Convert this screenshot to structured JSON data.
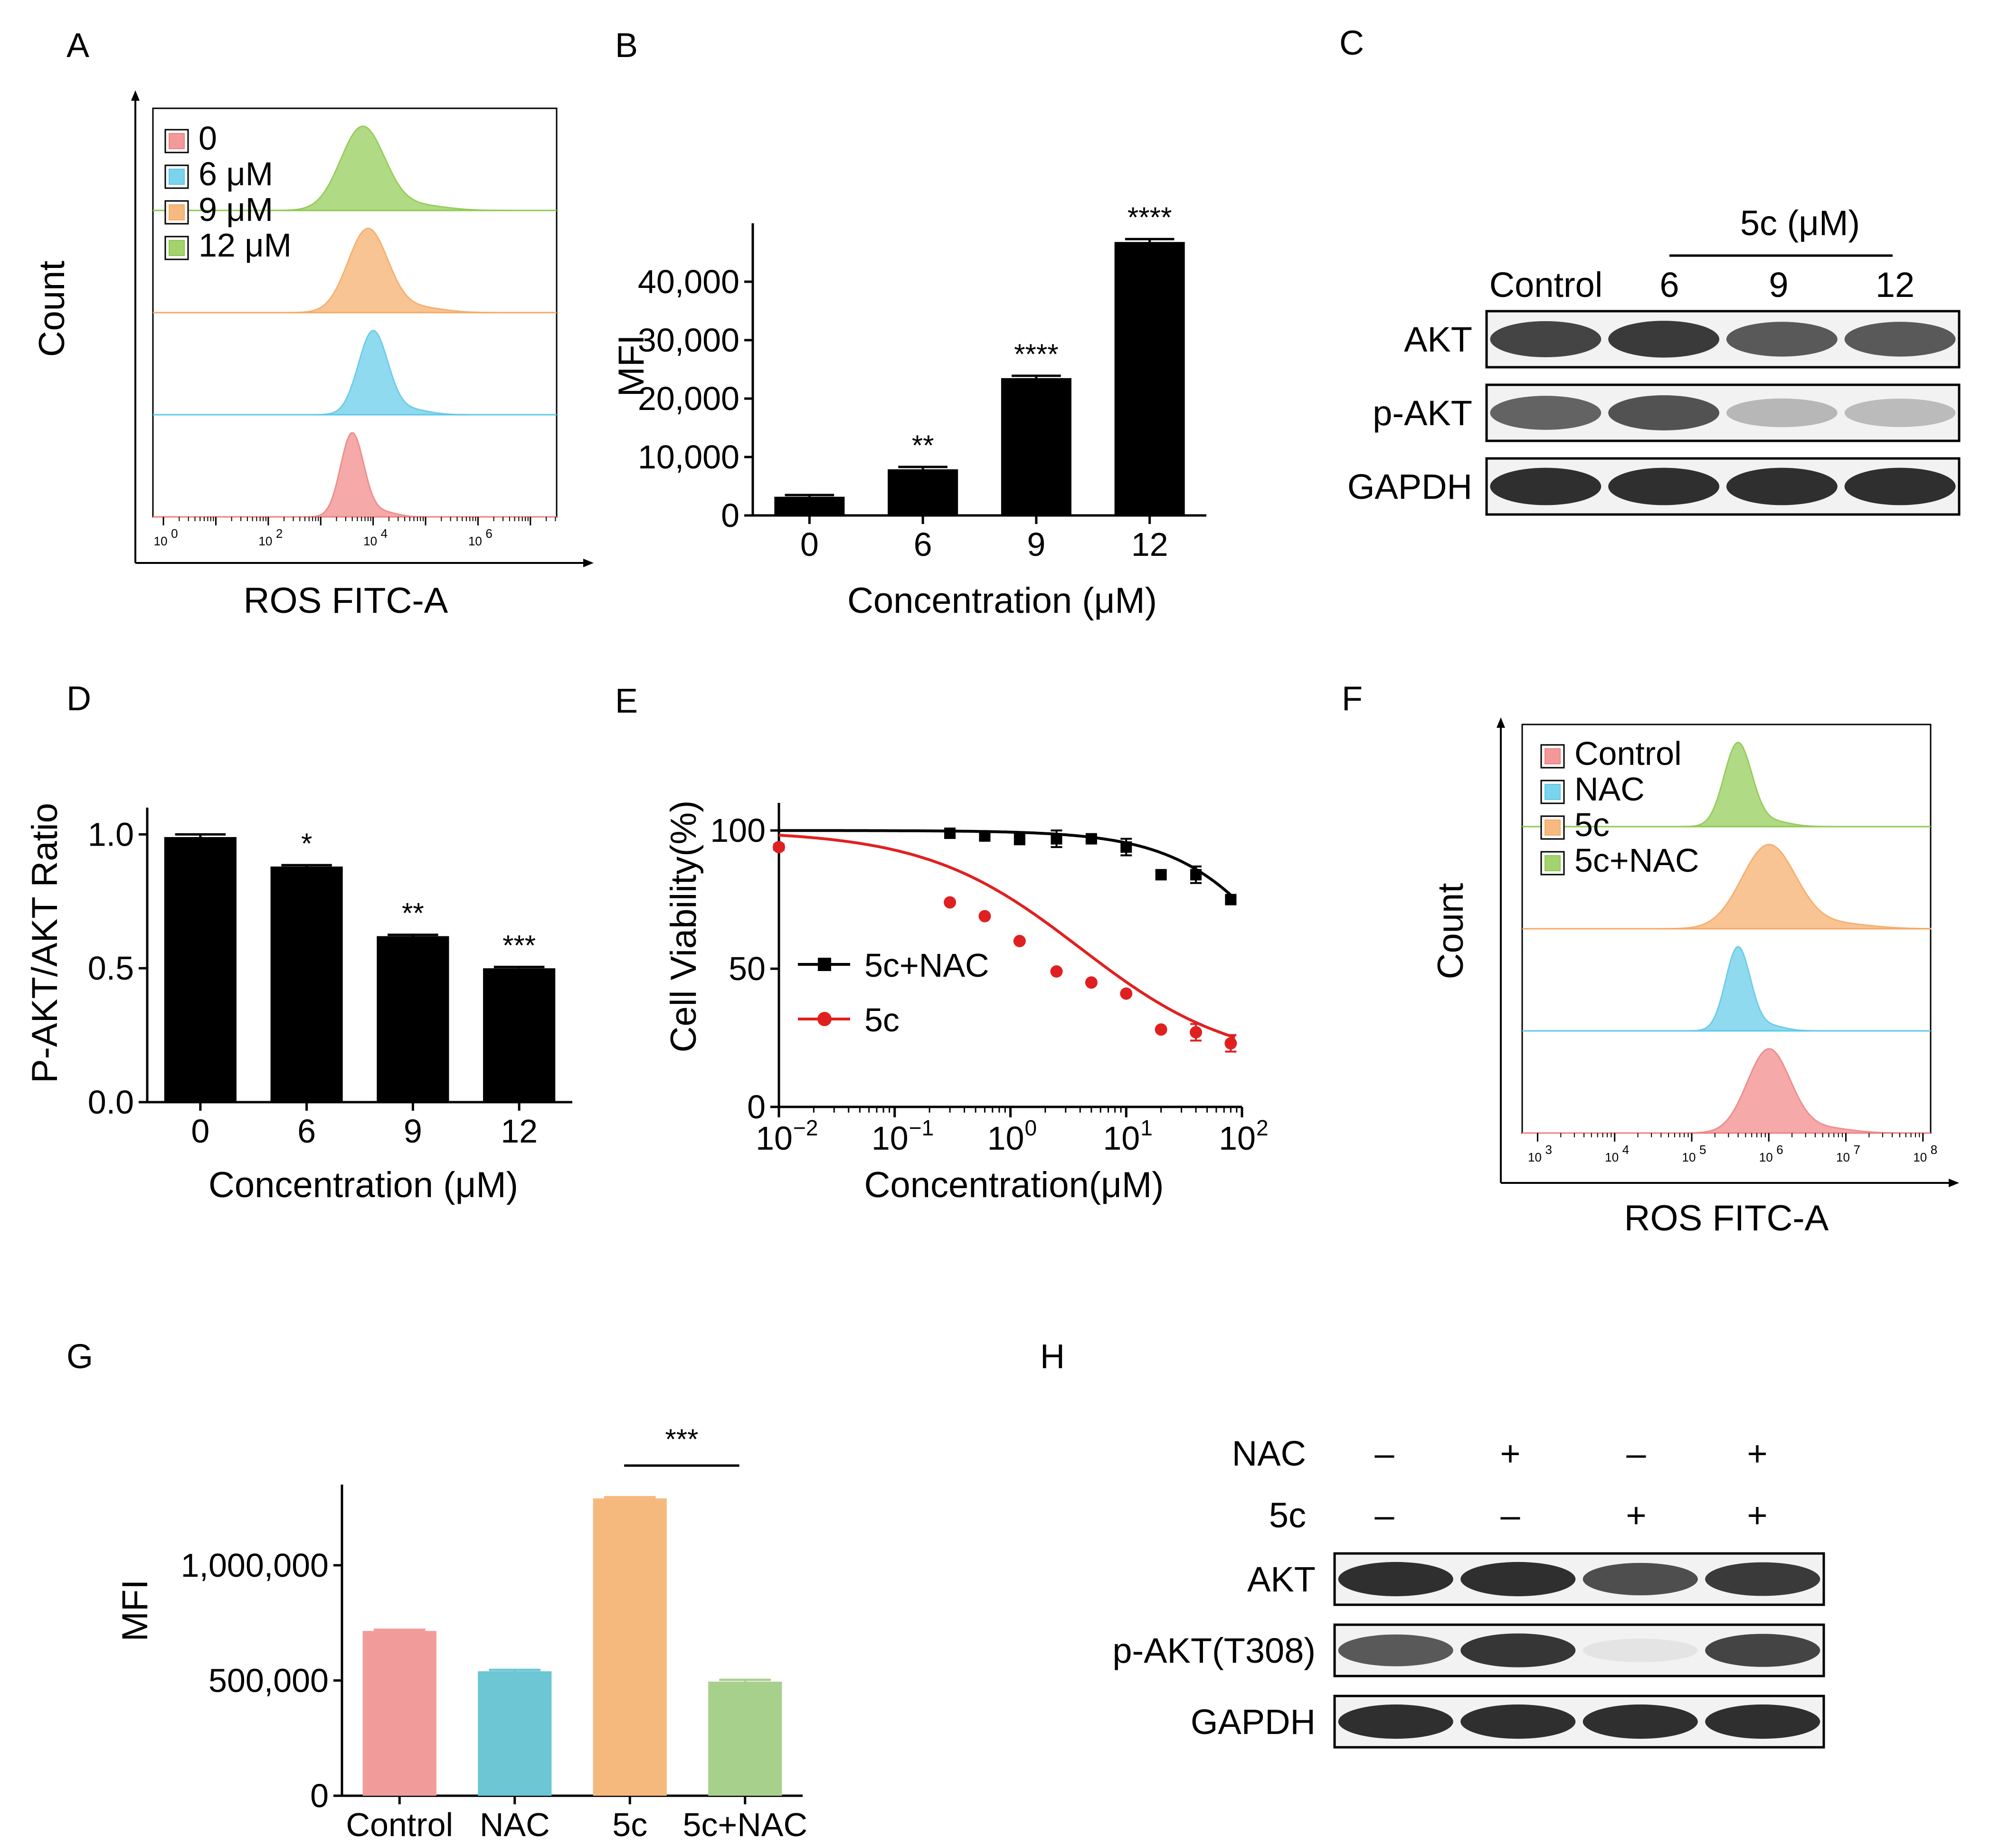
{
  "panels": {
    "A": {
      "label": "A",
      "legend": [
        "0",
        "6 μM",
        "9 μM",
        "12 μM"
      ],
      "colors": [
        "#f08080",
        "#5bc8e8",
        "#f5a860",
        "#8cc84b"
      ],
      "ylabel": "Count",
      "xlabel": "ROS FITC-A",
      "xticks": [
        "10",
        "10",
        "10",
        "10"
      ],
      "xtick_exps": [
        "0",
        "2",
        "4",
        "6"
      ],
      "peaks_log": [
        3.6,
        4.0,
        3.9,
        3.8
      ],
      "widths_log": [
        0.22,
        0.28,
        0.38,
        0.42
      ]
    },
    "B": {
      "label": "B",
      "ylabel": "MFI",
      "xlabel": "Concentration (μM)"
    },
    "C": {
      "label": "C",
      "group_header": "5c (μM)",
      "lanes": [
        "Control",
        "6",
        "9",
        "12"
      ],
      "rows": [
        "AKT",
        "p-AKT",
        "GAPDH"
      ],
      "intensities": [
        [
          0.85,
          0.9,
          0.75,
          0.75
        ],
        [
          0.7,
          0.78,
          0.3,
          0.28
        ],
        [
          0.95,
          0.95,
          0.95,
          0.95
        ]
      ]
    },
    "D": {
      "label": "D",
      "ylabel": "P-AKT/AKT Ratio",
      "xlabel": "Concentration (μM)"
    },
    "E": {
      "label": "E",
      "ylabel": "Cell Viability(%)",
      "xlabel": "Concentration(μM)",
      "xticks": [
        "10",
        "10",
        "10",
        "10",
        "10"
      ],
      "xtick_exps": [
        "−2",
        "−1",
        "0",
        "1",
        "2"
      ],
      "legend": [
        "5c+NAC",
        "5c"
      ]
    },
    "F": {
      "label": "F",
      "legend": [
        "Control",
        "NAC",
        "5c",
        "5c+NAC"
      ],
      "colors": [
        "#f08080",
        "#5bc8e8",
        "#f5a860",
        "#8cc84b"
      ],
      "ylabel": "Count",
      "xlabel": "ROS FITC-A",
      "xticks": [
        "10",
        "10",
        "10",
        "10",
        "10",
        "10"
      ],
      "xtick_exps": [
        "3",
        "4",
        "5",
        "6",
        "7",
        "8"
      ],
      "peaks_log": [
        6.0,
        5.6,
        6.0,
        5.6
      ],
      "widths_log": [
        0.28,
        0.16,
        0.35,
        0.18
      ]
    },
    "G": {
      "label": "G",
      "ylabel": "MFI"
    },
    "H": {
      "label": "H",
      "treat_rows": [
        {
          "name": "NAC",
          "signs": [
            "–",
            "+",
            "–",
            "+"
          ]
        },
        {
          "name": "5c",
          "signs": [
            "–",
            "–",
            "+",
            "+"
          ]
        }
      ],
      "rows": [
        "AKT",
        "p-AKT(T308)",
        "GAPDH"
      ],
      "intensities": [
        [
          0.95,
          0.95,
          0.8,
          0.9
        ],
        [
          0.75,
          0.92,
          0.08,
          0.85
        ],
        [
          0.95,
          0.95,
          0.95,
          0.95
        ]
      ]
    }
  },
  "chart_data": [
    {
      "id": "B",
      "type": "bar",
      "categories": [
        "0",
        "6",
        "9",
        "12"
      ],
      "values": [
        3200,
        7900,
        23500,
        46800
      ],
      "errors": [
        300,
        400,
        400,
        500
      ],
      "significance": [
        "",
        "**",
        "****",
        "****"
      ],
      "ylabel": "MFI",
      "xlabel": "Concentration (μM)",
      "ylim": [
        0,
        50000
      ],
      "yticks": [
        0,
        10000,
        20000,
        30000,
        40000
      ],
      "ytick_labels": [
        "0",
        "10,000",
        "20,000",
        "30,000",
        "40,000"
      ],
      "color": "#000000"
    },
    {
      "id": "D",
      "type": "bar",
      "categories": [
        "0",
        "6",
        "9",
        "12"
      ],
      "values": [
        0.99,
        0.88,
        0.62,
        0.5
      ],
      "errors": [
        0.01,
        0.005,
        0.005,
        0.005
      ],
      "significance": [
        "",
        "*",
        "**",
        "***"
      ],
      "ylabel": "P-AKT/AKT Ratio",
      "xlabel": "Concentration (μM)",
      "ylim": [
        0,
        1.1
      ],
      "yticks": [
        0,
        0.5,
        1.0
      ],
      "ytick_labels": [
        "0.0",
        "0.5",
        "1.0"
      ],
      "color": "#000000"
    },
    {
      "id": "E",
      "type": "scatter",
      "xscale": "log",
      "xlim": [
        0.01,
        100
      ],
      "ylim": [
        0,
        110
      ],
      "yticks": [
        0,
        50,
        100
      ],
      "ytick_labels": [
        "0",
        "50",
        "100"
      ],
      "xlabel": "Concentration(μM)",
      "ylabel": "Cell Viability(%)",
      "series": [
        {
          "name": "5c+NAC",
          "color": "#000000",
          "marker": "square",
          "x": [
            0.3,
            0.6,
            1.2,
            2.5,
            5,
            10,
            20,
            40,
            80
          ],
          "y": [
            99,
            98,
            97,
            97,
            97,
            94,
            84,
            84,
            75
          ],
          "err": [
            1,
            1,
            2,
            3,
            1,
            3,
            0,
            3,
            1
          ],
          "fit": {
            "top": 100,
            "bottom": 0,
            "ic50": 300,
            "hill": 0.9
          }
        },
        {
          "name": "5c",
          "color": "#e02020",
          "marker": "circle",
          "x": [
            0.01,
            0.3,
            0.6,
            1.2,
            2.5,
            5,
            10,
            20,
            40,
            80
          ],
          "y": [
            94,
            74,
            69,
            60,
            49,
            45,
            41,
            28,
            27,
            23
          ],
          "err": [
            1,
            0,
            0,
            0,
            0,
            0,
            0,
            0,
            3,
            3
          ],
          "fit": {
            "top": 100,
            "bottom": 15,
            "ic50": 4,
            "hill": 0.65
          }
        }
      ]
    },
    {
      "id": "G",
      "type": "bar",
      "categories": [
        "Control",
        "NAC",
        "5c",
        "5c+NAC"
      ],
      "values": [
        715000,
        540000,
        1290000,
        495000
      ],
      "errors": [
        5000,
        6000,
        5000,
        8000
      ],
      "colors": [
        "#f19b9b",
        "#6cc6d4",
        "#f5b97e",
        "#a8d08d"
      ],
      "significance_bracket": {
        "from": 2,
        "to": 3,
        "label": "***"
      },
      "ylabel": "MFI",
      "ylim": [
        0,
        1350000
      ],
      "yticks": [
        0,
        500000,
        1000000
      ],
      "ytick_labels": [
        "0",
        "500,000",
        "1,000,000"
      ]
    }
  ]
}
